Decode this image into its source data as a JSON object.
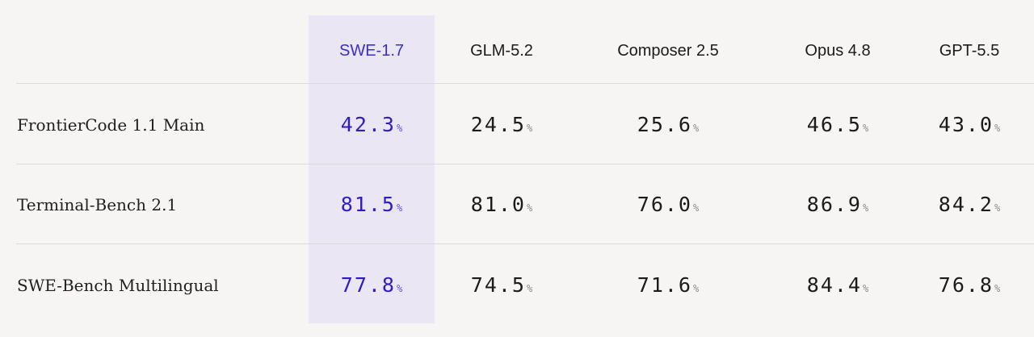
{
  "chart_data": {
    "type": "table",
    "unit": "%",
    "columns": [
      "SWE-1.7",
      "GLM-5.2",
      "Composer 2.5",
      "Opus 4.8",
      "GPT-5.5"
    ],
    "highlighted_column": "SWE-1.7",
    "rows": [
      {
        "label": "FrontierCode 1.1 Main",
        "values": [
          "42.3",
          "24.5",
          "25.6",
          "46.5",
          "43.0"
        ]
      },
      {
        "label": "Terminal-Bench 2.1",
        "values": [
          "81.5",
          "81.0",
          "76.0",
          "86.9",
          "84.2"
        ]
      },
      {
        "label": "SWE-Bench Multilingual",
        "values": [
          "77.8",
          "74.5",
          "71.6",
          "84.4",
          "76.8"
        ]
      }
    ]
  },
  "colors": {
    "background": "#f6f5f3",
    "highlight_background": "#ebe6f4",
    "highlight_text": "#2f1cc4",
    "text": "#1b1b1b",
    "percent_sign": "#8a8a8a",
    "divider": "#dedbd7"
  }
}
